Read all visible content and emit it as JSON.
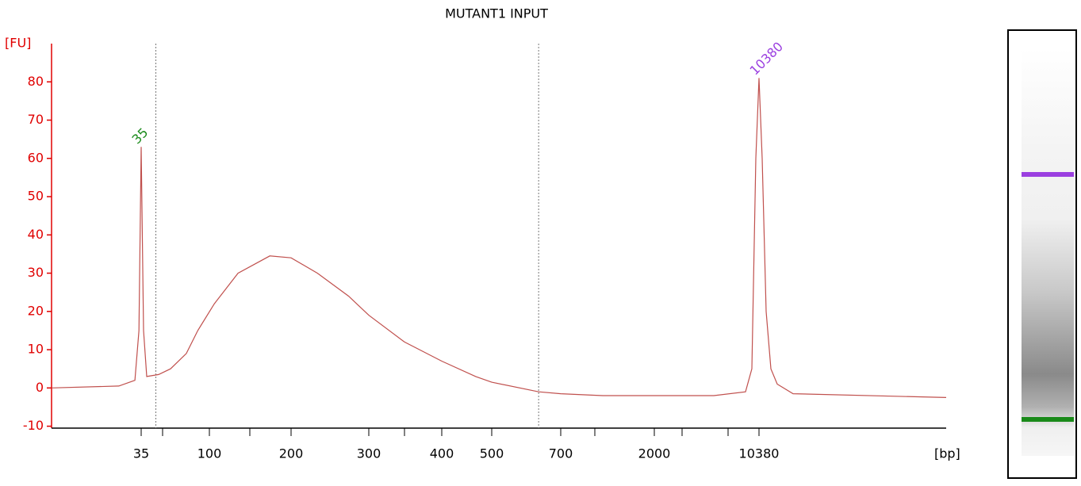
{
  "chart_data": {
    "type": "line",
    "title": "MUTANT1 INPUT",
    "y_label": "[FU]",
    "x_label": "[bp]",
    "x": [
      15,
      30,
      33.6,
      34.5,
      35,
      37.3,
      40.3,
      51.6,
      63,
      78,
      89,
      106,
      135,
      174,
      200,
      234,
      274,
      300,
      349,
      400,
      468,
      500,
      636,
      700,
      1284,
      2000,
      6761,
      9302,
      9810,
      10126,
      10380,
      10492,
      10632,
      10801,
      11025,
      11586,
      17000
    ],
    "values": [
      0,
      0.5,
      2,
      15,
      63,
      15,
      3,
      3.5,
      5,
      9,
      15,
      22,
      30,
      34.5,
      34,
      30,
      24,
      19,
      12,
      7,
      3,
      1.5,
      -1,
      -1.5,
      -2,
      -2,
      -2,
      -1,
      5,
      60,
      81,
      60,
      20,
      5,
      1,
      -1.5,
      -2.5
    ],
    "color": "#c0504d",
    "xlim": [
      15,
      17000
    ],
    "xticks": [
      35,
      100,
      200,
      300,
      400,
      500,
      700,
      2000,
      10380
    ],
    "ylim": [
      -10.5,
      90
    ],
    "yticks": [
      -10,
      0,
      10,
      20,
      30,
      40,
      50,
      60,
      70,
      80
    ],
    "region_lines": [
      49,
      636
    ],
    "peak_labels": [
      {
        "text": "35",
        "x": 35,
        "y": 63,
        "color": "#1a8a1a"
      },
      {
        "text": "10380",
        "x": 10380,
        "y": 81,
        "color": "#9b3fe0"
      }
    ]
  }
}
